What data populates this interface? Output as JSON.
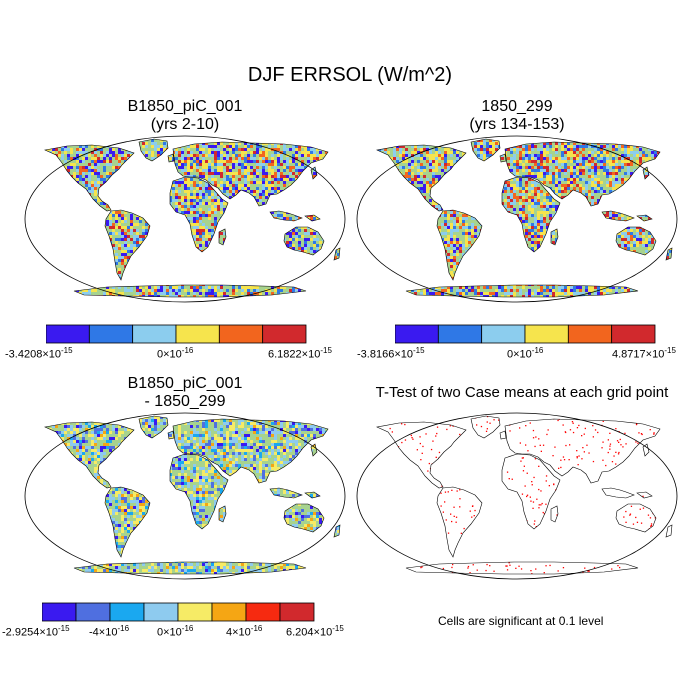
{
  "figure": {
    "title": "DJF ERRSOL (W/m^2)"
  },
  "panels": [
    {
      "title1": "B1850_piC_001",
      "title2": "(yrs 2-10)",
      "colorbar": {
        "colors": [
          "#3a1af0",
          "#2f78e6",
          "#8ccdee",
          "#f6e44d",
          "#f2651e",
          "#d1292d"
        ],
        "labels": [
          {
            "mant": "-3.4208",
            "exp": "-15"
          },
          {
            "mant": "0",
            "exp": "-16"
          },
          {
            "mant": "6.1822",
            "exp": "-15"
          }
        ]
      }
    },
    {
      "title1": "1850_299",
      "title2": "(yrs 134-153)",
      "colorbar": {
        "colors": [
          "#3a1af0",
          "#2f78e6",
          "#8ccdee",
          "#f6e44d",
          "#f2651e",
          "#d1292d"
        ],
        "labels": [
          {
            "mant": "-3.8166",
            "exp": "-15"
          },
          {
            "mant": "0",
            "exp": "-16"
          },
          {
            "mant": "4.8717",
            "exp": "-15"
          }
        ]
      }
    },
    {
      "title1": "B1850_piC_001",
      "title2": "- 1850_299",
      "colorbar": {
        "colors": [
          "#3a1af0",
          "#4f6fe0",
          "#1aa8f0",
          "#8ecbef",
          "#f6eb66",
          "#f5a614",
          "#f62a10",
          "#d1292d"
        ],
        "labels": [
          {
            "mant": "-2.9254",
            "exp": "-15"
          },
          {
            "mant": "-4",
            "exp": "-16"
          },
          {
            "mant": "0",
            "exp": "-16"
          },
          {
            "mant": "4",
            "exp": "-16"
          },
          {
            "mant": "6.204",
            "exp": "-15"
          }
        ]
      }
    },
    {
      "title1": "T-Test of two Case means at each grid point",
      "note": "Cells are significant at 0.1 level"
    }
  ],
  "chart_data": [
    {
      "type": "heatmap",
      "title": "B1850_piC_001 (yrs 2-10)",
      "projection": "Robinson (global)",
      "colorbar_range": [
        "-3.4208×10^-15",
        "6.1822×10^-15"
      ]
    },
    {
      "type": "heatmap",
      "title": "1850_299 (yrs 134-153)",
      "projection": "Robinson (global)",
      "colorbar_range": [
        "-3.8166×10^-15",
        "4.8717×10^-15"
      ]
    },
    {
      "type": "heatmap",
      "title": "B1850_piC_001 - 1850_299",
      "projection": "Robinson (global)",
      "colorbar_range": [
        "-2.9254×10^-15",
        "6.204×10^-15"
      ]
    },
    {
      "type": "scatter",
      "title": "T-Test of two Case means at each grid point",
      "note": "Cells are significant at 0.1 level",
      "marker_color": "#ff0000"
    }
  ]
}
